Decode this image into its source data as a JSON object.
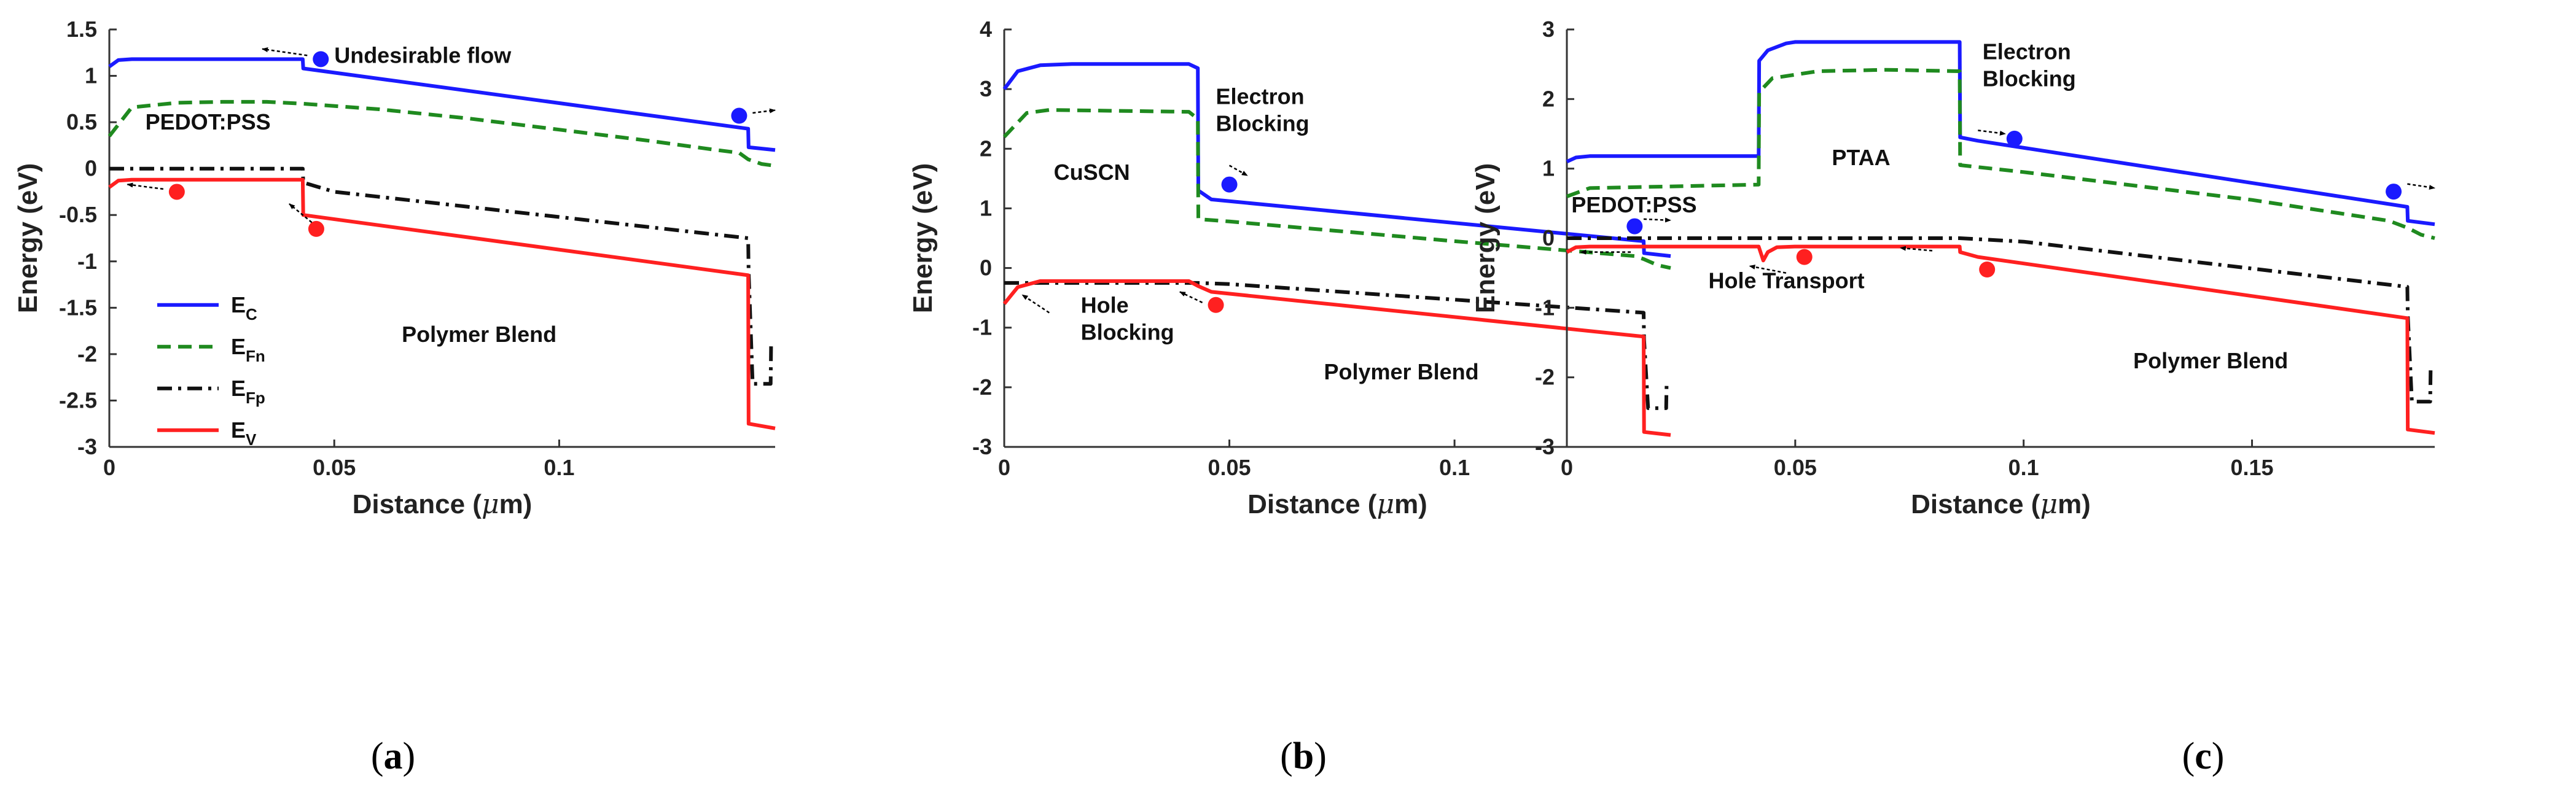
{
  "chart_data": [
    {
      "type": "line",
      "panel_label": [
        "(",
        "a",
        ")"
      ],
      "xlabel": [
        "Distance (",
        "μ",
        "m)"
      ],
      "ylabel": "Energy (eV)",
      "xlim": [
        0,
        0.148
      ],
      "ylim": [
        -3,
        1.5
      ],
      "xticks": [
        {
          "v": 0,
          "label": "0"
        },
        {
          "v": 0.05,
          "label": "0.05"
        },
        {
          "v": 0.1,
          "label": "0.1"
        }
      ],
      "yticks": [
        {
          "v": 1.5,
          "label": "1.5"
        },
        {
          "v": 1,
          "label": "1"
        },
        {
          "v": 0.5,
          "label": "0.5"
        },
        {
          "v": 0,
          "label": "0"
        },
        {
          "v": -0.5,
          "label": "-0.5"
        },
        {
          "v": -1,
          "label": "-1"
        },
        {
          "v": -1.5,
          "label": "-1.5"
        },
        {
          "v": -2,
          "label": "-2"
        },
        {
          "v": -2.5,
          "label": "-2.5"
        },
        {
          "v": -3,
          "label": "-3"
        }
      ],
      "grid": false,
      "legend": {
        "placement": "bottom-left",
        "entries": [
          {
            "base": "E",
            "sub": "C"
          },
          {
            "base": "E",
            "sub": "Fn"
          },
          {
            "base": "E",
            "sub": "Fp"
          },
          {
            "base": "E",
            "sub": "V"
          }
        ]
      },
      "series": [
        {
          "key": "Ec",
          "color": "#1a1aff",
          "style": "solid",
          "x": [
            0,
            0.002,
            0.005,
            0.043,
            0.0431,
            0.142,
            0.1421,
            0.148
          ],
          "y": [
            1.1,
            1.17,
            1.18,
            1.18,
            1.08,
            0.43,
            0.23,
            0.2
          ]
        },
        {
          "key": "Efn",
          "color": "#1f8a1f",
          "style": "dashed",
          "x": [
            0,
            0.005,
            0.015,
            0.025,
            0.035,
            0.043,
            0.06,
            0.08,
            0.1,
            0.12,
            0.135,
            0.14,
            0.142,
            0.145,
            0.148
          ],
          "y": [
            0.35,
            0.66,
            0.71,
            0.72,
            0.72,
            0.7,
            0.64,
            0.54,
            0.42,
            0.3,
            0.2,
            0.17,
            0.1,
            0.05,
            0.03
          ]
        },
        {
          "key": "Efp",
          "color": "#111111",
          "style": "dashdot",
          "x": [
            0,
            0.043,
            0.0431,
            0.05,
            0.142,
            0.1421,
            0.143,
            0.147,
            0.1471
          ],
          "y": [
            0,
            0,
            -0.15,
            -0.25,
            -0.75,
            -1.1,
            -2.32,
            -2.32,
            -1.9
          ]
        },
        {
          "key": "Ev",
          "color": "#ff2020",
          "style": "solid",
          "x": [
            0,
            0.002,
            0.005,
            0.043,
            0.0431,
            0.142,
            0.1421,
            0.148
          ],
          "y": [
            -0.2,
            -0.13,
            -0.12,
            -0.12,
            -0.5,
            -1.15,
            -2.75,
            -2.8
          ]
        }
      ],
      "carriers": [
        {
          "x": 0.047,
          "y": 1.18,
          "color": "#1a1aff"
        },
        {
          "x": 0.14,
          "y": 0.57,
          "color": "#1a1aff"
        },
        {
          "x": 0.015,
          "y": -0.25,
          "color": "#ff2020"
        },
        {
          "x": 0.046,
          "y": -0.65,
          "color": "#ff2020"
        }
      ],
      "arrows": [
        {
          "x1": 0.044,
          "y1": 1.22,
          "x2": 0.034,
          "y2": 1.29
        },
        {
          "x1": 0.143,
          "y1": 0.6,
          "x2": 0.148,
          "y2": 0.63
        },
        {
          "x1": 0.012,
          "y1": -0.22,
          "x2": 0.004,
          "y2": -0.17
        },
        {
          "x1": 0.045,
          "y1": -0.58,
          "x2": 0.04,
          "y2": -0.38
        }
      ],
      "annotations": [
        {
          "lines": [
            "Undesirable flow"
          ],
          "x": 0.05,
          "y": 1.14
        },
        {
          "lines": [
            "PEDOT:PSS"
          ],
          "x": 0.008,
          "y": 0.42
        },
        {
          "lines": [
            "Polymer Blend"
          ],
          "x": 0.065,
          "y": -1.87
        }
      ]
    },
    {
      "type": "line",
      "panel_label": [
        "(",
        "b",
        ")"
      ],
      "xlabel": [
        "Distance (",
        "μ",
        "m)"
      ],
      "ylabel": "Energy (eV)",
      "xlim": [
        0,
        0.148
      ],
      "ylim": [
        -3,
        4
      ],
      "xticks": [
        {
          "v": 0,
          "label": "0"
        },
        {
          "v": 0.05,
          "label": "0.05"
        },
        {
          "v": 0.1,
          "label": "0.1"
        }
      ],
      "yticks": [
        {
          "v": 4,
          "label": "4"
        },
        {
          "v": 3,
          "label": "3"
        },
        {
          "v": 2,
          "label": "2"
        },
        {
          "v": 1,
          "label": "1"
        },
        {
          "v": 0,
          "label": "0"
        },
        {
          "v": -1,
          "label": "-1"
        },
        {
          "v": -2,
          "label": "-2"
        },
        {
          "v": -3,
          "label": "-3"
        }
      ],
      "grid": false,
      "series": [
        {
          "key": "Ec",
          "color": "#1a1aff",
          "style": "solid",
          "x": [
            0,
            0.003,
            0.008,
            0.015,
            0.041,
            0.043,
            0.0431,
            0.046,
            0.142,
            0.1421,
            0.148
          ],
          "y": [
            3.0,
            3.3,
            3.4,
            3.42,
            3.42,
            3.35,
            1.3,
            1.15,
            0.45,
            0.25,
            0.2
          ]
        },
        {
          "key": "Efn",
          "color": "#1f8a1f",
          "style": "dashed",
          "x": [
            0,
            0.005,
            0.01,
            0.041,
            0.043,
            0.0431,
            0.05,
            0.1,
            0.14,
            0.142,
            0.145,
            0.148
          ],
          "y": [
            2.2,
            2.6,
            2.65,
            2.62,
            2.5,
            0.82,
            0.78,
            0.45,
            0.2,
            0.15,
            0.05,
            0.0
          ]
        },
        {
          "key": "Efp",
          "color": "#111111",
          "style": "dashdot",
          "x": [
            0,
            0.005,
            0.041,
            0.043,
            0.05,
            0.142,
            0.1421,
            0.143,
            0.147,
            0.1471
          ],
          "y": [
            -0.25,
            -0.25,
            -0.25,
            -0.25,
            -0.27,
            -0.75,
            -1.2,
            -2.35,
            -2.35,
            -1.95
          ]
        },
        {
          "key": "Ev",
          "color": "#ff2020",
          "style": "solid",
          "x": [
            0,
            0.003,
            0.008,
            0.041,
            0.043,
            0.046,
            0.142,
            0.1421,
            0.148
          ],
          "y": [
            -0.6,
            -0.32,
            -0.22,
            -0.22,
            -0.3,
            -0.4,
            -1.15,
            -2.75,
            -2.8
          ]
        }
      ],
      "carriers": [
        {
          "x": 0.05,
          "y": 1.4,
          "color": "#1a1aff"
        },
        {
          "x": 0.14,
          "y": 0.7,
          "color": "#1a1aff"
        },
        {
          "x": 0.047,
          "y": -0.62,
          "color": "#ff2020"
        }
      ],
      "arrows": [
        {
          "x1": 0.05,
          "y1": 1.72,
          "x2": 0.054,
          "y2": 1.55
        },
        {
          "x1": 0.142,
          "y1": 0.82,
          "x2": 0.148,
          "y2": 0.8
        },
        {
          "x1": 0.01,
          "y1": -0.75,
          "x2": 0.004,
          "y2": -0.45
        },
        {
          "x1": 0.044,
          "y1": -0.58,
          "x2": 0.039,
          "y2": -0.4
        }
      ],
      "annotations": [
        {
          "lines": [
            "Electron",
            "Blocking"
          ],
          "x": 0.047,
          "y": 2.75
        },
        {
          "lines": [
            "CuSCN"
          ],
          "x": 0.011,
          "y": 1.48
        },
        {
          "lines": [
            "Hole",
            "Blocking"
          ],
          "x": 0.017,
          "y": -0.75
        },
        {
          "lines": [
            "Polymer Blend"
          ],
          "x": 0.071,
          "y": -1.87
        }
      ]
    },
    {
      "type": "line",
      "panel_label": [
        "(",
        "c",
        ")"
      ],
      "xlabel": [
        "Distance (",
        "μ",
        "m)"
      ],
      "ylabel": "Energy (eV)",
      "xlim": [
        0,
        0.19
      ],
      "ylim": [
        -3,
        3
      ],
      "xticks": [
        {
          "v": 0,
          "label": "0"
        },
        {
          "v": 0.05,
          "label": "0.05"
        },
        {
          "v": 0.1,
          "label": "0.1"
        },
        {
          "v": 0.15,
          "label": "0.15"
        }
      ],
      "yticks": [
        {
          "v": 3,
          "label": "3"
        },
        {
          "v": 2,
          "label": "2"
        },
        {
          "v": 1,
          "label": "1"
        },
        {
          "v": 0,
          "label": "0"
        },
        {
          "v": -1,
          "label": "-1"
        },
        {
          "v": -2,
          "label": "-2"
        },
        {
          "v": -3,
          "label": "-3"
        }
      ],
      "grid": false,
      "series": [
        {
          "key": "Ec",
          "color": "#1a1aff",
          "style": "solid",
          "x": [
            0,
            0.002,
            0.005,
            0.042,
            0.0421,
            0.044,
            0.048,
            0.05,
            0.086,
            0.0861,
            0.09,
            0.184,
            0.1841,
            0.19
          ],
          "y": [
            1.1,
            1.16,
            1.18,
            1.18,
            2.55,
            2.7,
            2.8,
            2.82,
            2.82,
            1.45,
            1.4,
            0.45,
            0.25,
            0.2
          ]
        },
        {
          "key": "Efn",
          "color": "#1f8a1f",
          "style": "dashed",
          "x": [
            0,
            0.005,
            0.042,
            0.0421,
            0.045,
            0.055,
            0.07,
            0.086,
            0.0861,
            0.1,
            0.15,
            0.18,
            0.184,
            0.187,
            0.19
          ],
          "y": [
            0.6,
            0.72,
            0.77,
            2.1,
            2.3,
            2.4,
            2.42,
            2.4,
            1.05,
            0.95,
            0.55,
            0.25,
            0.15,
            0.05,
            0.0
          ]
        },
        {
          "key": "Efp",
          "color": "#111111",
          "style": "dashdot",
          "x": [
            0,
            0.086,
            0.1,
            0.184,
            0.1841,
            0.185,
            0.189,
            0.1891
          ],
          "y": [
            0,
            0,
            -0.05,
            -0.7,
            -1.1,
            -2.35,
            -2.35,
            -1.9
          ]
        },
        {
          "key": "Ev",
          "color": "#ff2020",
          "style": "solid",
          "x": [
            0,
            0.002,
            0.005,
            0.042,
            0.043,
            0.044,
            0.046,
            0.05,
            0.086,
            0.0861,
            0.09,
            0.184,
            0.1841,
            0.19
          ],
          "y": [
            -0.2,
            -0.13,
            -0.12,
            -0.12,
            -0.32,
            -0.2,
            -0.13,
            -0.12,
            -0.12,
            -0.2,
            -0.27,
            -1.15,
            -2.75,
            -2.8
          ]
        }
      ],
      "carriers": [
        {
          "x": 0.098,
          "y": 1.43,
          "color": "#1a1aff"
        },
        {
          "x": 0.181,
          "y": 0.67,
          "color": "#1a1aff"
        },
        {
          "x": 0.052,
          "y": -0.27,
          "color": "#ff2020"
        },
        {
          "x": 0.092,
          "y": -0.45,
          "color": "#ff2020"
        }
      ],
      "arrows": [
        {
          "x1": 0.09,
          "y1": 1.55,
          "x2": 0.096,
          "y2": 1.5
        },
        {
          "x1": 0.184,
          "y1": 0.78,
          "x2": 0.19,
          "y2": 0.72
        },
        {
          "x1": 0.014,
          "y1": -0.2,
          "x2": 0.003,
          "y2": -0.2
        },
        {
          "x1": 0.048,
          "y1": -0.5,
          "x2": 0.04,
          "y2": -0.4
        },
        {
          "x1": 0.08,
          "y1": -0.18,
          "x2": 0.073,
          "y2": -0.14
        }
      ],
      "annotations": [
        {
          "lines": [
            "Electron",
            "Blocking"
          ],
          "x": 0.091,
          "y": 2.57
        },
        {
          "lines": [
            "PTAA"
          ],
          "x": 0.058,
          "y": 1.05
        },
        {
          "lines": [
            "PEDOT:PSS"
          ],
          "x": 0.001,
          "y": 0.37
        },
        {
          "lines": [
            "Hole Transport"
          ],
          "x": 0.031,
          "y": -0.72
        },
        {
          "lines": [
            "Polymer Blend"
          ],
          "x": 0.124,
          "y": -1.87
        }
      ]
    }
  ]
}
